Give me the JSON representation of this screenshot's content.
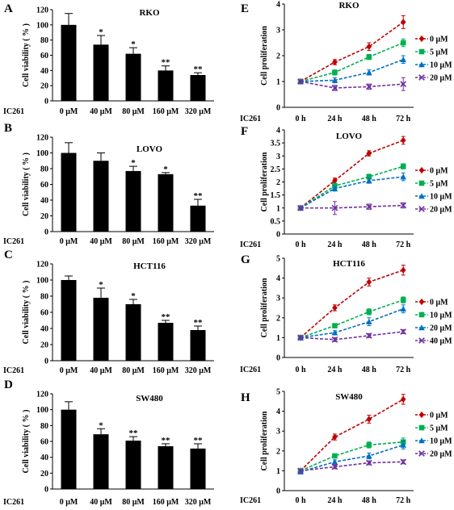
{
  "figure": {
    "x_prefix": "IC261",
    "bar_ylabel": "Cell viability ( % )",
    "line_ylabel": "Cell proliferation"
  },
  "chart_data": [
    {
      "panel": "A",
      "type": "bar",
      "title": "RKO",
      "categories": [
        "0 μM",
        "40 μM",
        "80 μM",
        "160 μM",
        "320 μM"
      ],
      "values": [
        100,
        74,
        62,
        40,
        34
      ],
      "errors": [
        15,
        12,
        8,
        6,
        3
      ],
      "significance": [
        "",
        "*",
        "*",
        "**",
        "**"
      ],
      "ylim": [
        0,
        120
      ],
      "yticks": [
        0,
        20,
        40,
        60,
        80,
        100,
        120
      ],
      "ylabel": "Cell viability ( % )",
      "xprefix": "IC261"
    },
    {
      "panel": "B",
      "type": "bar",
      "title": "LOVO",
      "categories": [
        "0 μM",
        "40 μM",
        "80 μM",
        "160 μM",
        "320 μM"
      ],
      "values": [
        100,
        90,
        77,
        73,
        33
      ],
      "errors": [
        13,
        10,
        6,
        2,
        8
      ],
      "significance": [
        "",
        "",
        "*",
        "*",
        "**"
      ],
      "ylim": [
        0,
        120
      ],
      "yticks": [
        0,
        20,
        40,
        60,
        80,
        100,
        120
      ],
      "ylabel": "Cell viability ( % )",
      "xprefix": "IC261"
    },
    {
      "panel": "C",
      "type": "bar",
      "title": "HCT116",
      "categories": [
        "0 μM",
        "40 μM",
        "80 μM",
        "160 μM",
        "320 μM"
      ],
      "values": [
        100,
        78,
        70,
        47,
        38
      ],
      "errors": [
        5,
        12,
        6,
        3,
        5
      ],
      "significance": [
        "",
        "*",
        "*",
        "**",
        "**"
      ],
      "ylim": [
        0,
        120
      ],
      "yticks": [
        0,
        20,
        40,
        60,
        80,
        100,
        120
      ],
      "ylabel": "Cell viability ( % )",
      "xprefix": "IC261"
    },
    {
      "panel": "D",
      "type": "bar",
      "title": "SW480",
      "categories": [
        "0 μM",
        "40 μM",
        "80 μM",
        "160 μM",
        "320 μM"
      ],
      "values": [
        100,
        69,
        61,
        54,
        51
      ],
      "errors": [
        10,
        7,
        5,
        3,
        6
      ],
      "significance": [
        "",
        "*",
        "**",
        "**",
        "**"
      ],
      "ylim": [
        0,
        120
      ],
      "yticks": [
        0,
        20,
        40,
        60,
        80,
        100,
        120
      ],
      "ylabel": "Cell viability ( % )",
      "xprefix": "IC261"
    },
    {
      "panel": "E",
      "type": "line",
      "title": "RKO",
      "x": [
        "0 h",
        "24 h",
        "48 h",
        "72 h"
      ],
      "ylim": [
        0,
        4
      ],
      "yticks": [
        0,
        1,
        2,
        3,
        4
      ],
      "ylabel": "Cell proliferation",
      "xprefix": "IC261",
      "legend_position": "right",
      "series": [
        {
          "name": "0 μM",
          "color": "#c00000",
          "marker": "diamond",
          "values": [
            1,
            1.75,
            2.35,
            3.3
          ],
          "errors": [
            0.05,
            0.1,
            0.15,
            0.25
          ]
        },
        {
          "name": "5 μM",
          "color": "#00b050",
          "marker": "square",
          "values": [
            1,
            1.35,
            1.95,
            2.5
          ],
          "errors": [
            0.05,
            0.1,
            0.1,
            0.15
          ]
        },
        {
          "name": "10 μM",
          "color": "#0070c0",
          "marker": "triangle",
          "values": [
            1,
            1.05,
            1.35,
            1.85
          ],
          "errors": [
            0.05,
            0.1,
            0.1,
            0.15
          ]
        },
        {
          "name": "20 μM",
          "color": "#7030a0",
          "marker": "x",
          "values": [
            1,
            0.75,
            0.8,
            0.9
          ],
          "errors": [
            0.05,
            0.1,
            0.1,
            0.25
          ]
        }
      ]
    },
    {
      "panel": "F",
      "type": "line",
      "title": "LOVO",
      "x": [
        "0 h",
        "24 h",
        "48 h",
        "72 h"
      ],
      "ylim": [
        0,
        4
      ],
      "yticks": [
        0,
        0.5,
        1,
        1.5,
        2,
        2.5,
        3,
        3.5,
        4
      ],
      "ylabel": "Cell proliferation",
      "xprefix": "IC261",
      "legend_position": "right",
      "series": [
        {
          "name": "0 μM",
          "color": "#c00000",
          "marker": "diamond",
          "values": [
            1,
            2.05,
            3.1,
            3.6
          ],
          "errors": [
            0.05,
            0.1,
            0.1,
            0.15
          ]
        },
        {
          "name": "5 μM",
          "color": "#00b050",
          "marker": "square",
          "values": [
            1,
            1.85,
            2.2,
            2.6
          ],
          "errors": [
            0.05,
            0.1,
            0.1,
            0.1
          ]
        },
        {
          "name": "10 μM",
          "color": "#0070c0",
          "marker": "triangle",
          "values": [
            1,
            1.75,
            2.05,
            2.2
          ],
          "errors": [
            0.05,
            0.1,
            0.1,
            0.15
          ]
        },
        {
          "name": "20 μM",
          "color": "#7030a0",
          "marker": "x",
          "values": [
            1,
            1,
            1.05,
            1.1
          ],
          "errors": [
            0.05,
            0.25,
            0.1,
            0.1
          ]
        }
      ]
    },
    {
      "panel": "G",
      "type": "line",
      "title": "HCT116",
      "x": [
        "0 h",
        "24 h",
        "48 h",
        "72 h"
      ],
      "ylim": [
        0,
        5
      ],
      "yticks": [
        0,
        1,
        2,
        3,
        4,
        5
      ],
      "ylabel": "Cell proliferation",
      "xprefix": "IC261",
      "legend_position": "right",
      "series": [
        {
          "name": "0 μM",
          "color": "#c00000",
          "marker": "diamond",
          "values": [
            1,
            2.5,
            3.8,
            4.4
          ],
          "errors": [
            0.05,
            0.15,
            0.2,
            0.25
          ]
        },
        {
          "name": "10 μM",
          "color": "#00b050",
          "marker": "square",
          "values": [
            1,
            1.6,
            2.3,
            2.9
          ],
          "errors": [
            0.05,
            0.1,
            0.15,
            0.15
          ]
        },
        {
          "name": "20 μM",
          "color": "#0070c0",
          "marker": "triangle",
          "values": [
            1,
            1.25,
            1.8,
            2.45
          ],
          "errors": [
            0.05,
            0.1,
            0.2,
            0.2
          ]
        },
        {
          "name": "40 μM",
          "color": "#7030a0",
          "marker": "x",
          "values": [
            1,
            0.9,
            1.1,
            1.3
          ],
          "errors": [
            0.05,
            0.1,
            0.1,
            0.1
          ]
        }
      ]
    },
    {
      "panel": "H",
      "type": "line",
      "title": "SW480",
      "x": [
        "0 h",
        "24 h",
        "48 h",
        "72 h"
      ],
      "ylim": [
        0,
        5
      ],
      "yticks": [
        0,
        1,
        2,
        3,
        4,
        5
      ],
      "ylabel": "Cell proliferation",
      "xprefix": "IC261",
      "legend_position": "right",
      "series": [
        {
          "name": "0 μM",
          "color": "#c00000",
          "marker": "diamond",
          "values": [
            1,
            2.7,
            3.6,
            4.6
          ],
          "errors": [
            0.05,
            0.15,
            0.2,
            0.25
          ]
        },
        {
          "name": "5 μM",
          "color": "#00b050",
          "marker": "square",
          "values": [
            1,
            1.75,
            2.3,
            2.45
          ],
          "errors": [
            0.05,
            0.1,
            0.15,
            0.2
          ]
        },
        {
          "name": "10 μM",
          "color": "#0070c0",
          "marker": "triangle",
          "values": [
            0.95,
            1.45,
            1.75,
            2.3
          ],
          "errors": [
            0.05,
            0.1,
            0.15,
            0.2
          ]
        },
        {
          "name": "20 μM",
          "color": "#7030a0",
          "marker": "x",
          "values": [
            1,
            1.2,
            1.4,
            1.45
          ],
          "errors": [
            0.05,
            0.1,
            0.1,
            0.1
          ]
        }
      ]
    }
  ]
}
